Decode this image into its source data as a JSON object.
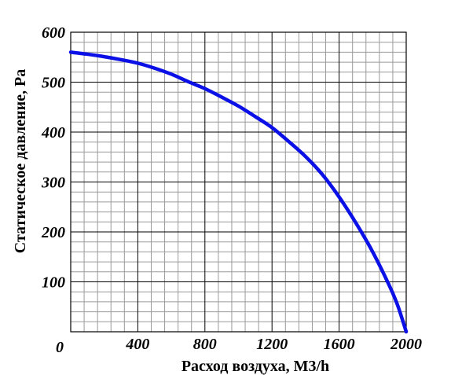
{
  "chart_data": {
    "type": "line",
    "title": "",
    "xlabel": "Расход воздуха, М3/h",
    "ylabel": "Статическое давление, Pa",
    "xlim": [
      0,
      2000
    ],
    "ylim": [
      0,
      600
    ],
    "x_ticks": [
      {
        "value": 0,
        "label": "0"
      },
      {
        "value": 400,
        "label": "400"
      },
      {
        "value": 800,
        "label": "800"
      },
      {
        "value": 1200,
        "label": "1200"
      },
      {
        "value": 1600,
        "label": "1600"
      },
      {
        "value": 2000,
        "label": "2000"
      }
    ],
    "y_ticks": [
      {
        "value": 100,
        "label": "100"
      },
      {
        "value": 200,
        "label": "200"
      },
      {
        "value": 300,
        "label": "300"
      },
      {
        "value": 400,
        "label": "400"
      },
      {
        "value": 500,
        "label": "500"
      },
      {
        "value": 600,
        "label": "600"
      }
    ],
    "grid": true,
    "x_major_step": 400,
    "x_minor_step": 80,
    "y_major_step": 100,
    "y_minor_step": 20,
    "colors": {
      "line": "#0a10e6",
      "major_grid": "#000000",
      "minor_grid": "#9a9a9a",
      "background": "#ffffff"
    },
    "series": [
      {
        "x": [
          0,
          100,
          200,
          300,
          400,
          500,
          600,
          700,
          800,
          900,
          1000,
          1100,
          1200,
          1300,
          1400,
          1500,
          1600,
          1700,
          1800,
          1900,
          1950,
          2000
        ],
        "y": [
          560,
          556,
          551,
          545,
          538,
          528,
          516,
          501,
          487,
          470,
          452,
          431,
          409,
          381,
          351,
          315,
          270,
          218,
          160,
          92,
          52,
          0
        ]
      }
    ]
  }
}
